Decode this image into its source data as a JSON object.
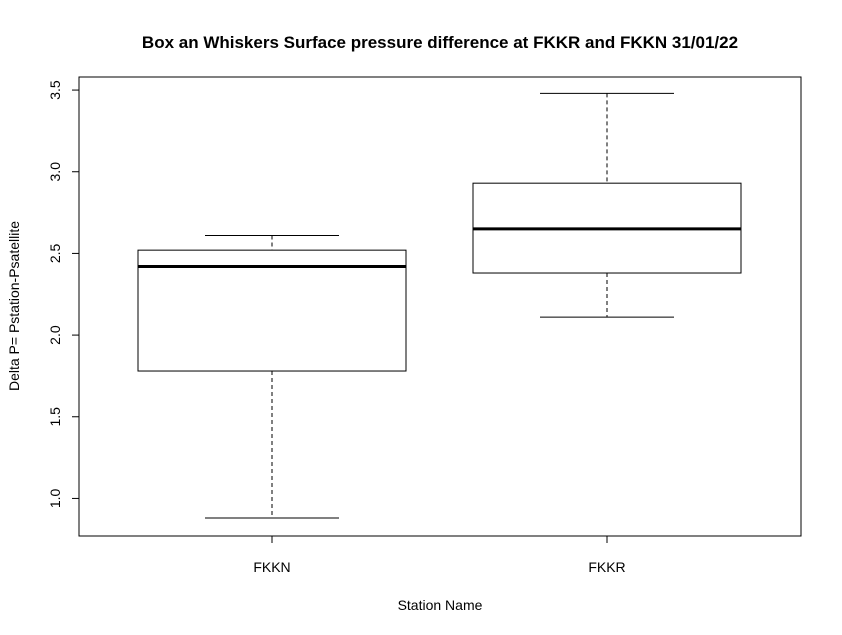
{
  "chart_data": {
    "type": "box",
    "title": "Box an Whiskers Surface pressure difference at FKKR and FKKN 31/01/22",
    "xlabel": "Station Name",
    "ylabel": "Delta P= Pstation-Psatellite",
    "ylim": [
      0.77,
      3.58
    ],
    "yticks": [
      "1.0",
      "1.5",
      "2.0",
      "2.5",
      "3.0",
      "3.5"
    ],
    "categories": [
      "FKKN",
      "FKKR"
    ],
    "boxes": [
      {
        "name": "FKKN",
        "min": 0.88,
        "q1": 1.78,
        "median": 2.42,
        "q3": 2.52,
        "max": 2.61
      },
      {
        "name": "FKKR",
        "min": 2.11,
        "q1": 2.38,
        "median": 2.65,
        "q3": 2.93,
        "max": 3.48
      }
    ],
    "grid": false,
    "legend": "none"
  }
}
